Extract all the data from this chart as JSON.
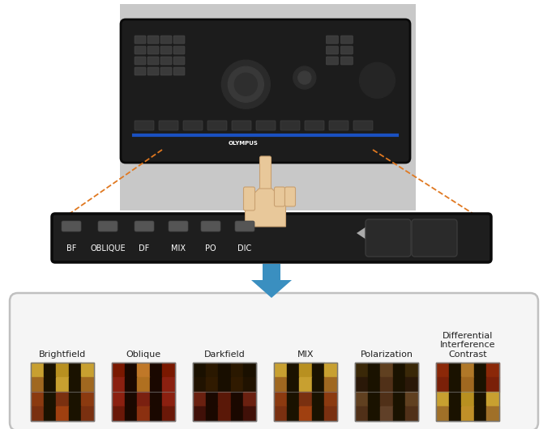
{
  "bg_color": "#ffffff",
  "labels": [
    "Brightfield",
    "Oblique",
    "Darkfield",
    "MIX",
    "Polarization",
    "Differential\nInterference\nContrast"
  ],
  "panel_bg": "#f8f8f8",
  "panel_border": "#cccccc",
  "arrow_color": "#3a8fc0",
  "dashed_color": "#e07820",
  "button_labels": [
    "BF",
    "OBLIQUE",
    "DF",
    "MIX",
    "PO",
    "DIC"
  ],
  "thumb_colors": [
    {
      "top": [
        [
          "#c8a030",
          "#1a1200",
          "#b89020",
          "#1a1200",
          "#c8a030"
        ],
        [
          "#a06820",
          "#1a1200",
          "#c8a030",
          "#1a1200",
          "#a06820"
        ]
      ],
      "bot": [
        [
          "#8b3a10",
          "#1a1200",
          "#7a3010",
          "#1a1200",
          "#8b3a10"
        ],
        [
          "#7a3010",
          "#1a1200",
          "#a04010",
          "#1a1200",
          "#7a3010"
        ]
      ]
    },
    {
      "top": [
        [
          "#7a1800",
          "#1a0800",
          "#c07828",
          "#1a0800",
          "#7a1800"
        ],
        [
          "#8b2010",
          "#1a0800",
          "#b07020",
          "#1a0800",
          "#8b2010"
        ]
      ],
      "bot": [
        [
          "#8b2010",
          "#1a0800",
          "#7a2010",
          "#1a0800",
          "#8b2010"
        ],
        [
          "#6a1808",
          "#1a0800",
          "#8b3010",
          "#1a0800",
          "#6a1808"
        ]
      ]
    },
    {
      "top": [
        [
          "#1a1000",
          "#2a1800",
          "#180e00",
          "#2a1800",
          "#1a1000"
        ],
        [
          "#201200",
          "#301a00",
          "#180e00",
          "#301a00",
          "#201200"
        ]
      ],
      "bot": [
        [
          "#6a2010",
          "#1a0800",
          "#5a1808",
          "#1a0800",
          "#6a2010"
        ],
        [
          "#401008",
          "#1a0800",
          "#5a1808",
          "#1a0800",
          "#401008"
        ]
      ]
    },
    {
      "top": [
        [
          "#c8a030",
          "#1a1200",
          "#b89020",
          "#1a1200",
          "#c8a030"
        ],
        [
          "#a06820",
          "#1a1200",
          "#c8a030",
          "#1a1200",
          "#a06820"
        ]
      ],
      "bot": [
        [
          "#8b3a10",
          "#1a1200",
          "#7a3010",
          "#1a1200",
          "#8b3a10"
        ],
        [
          "#7a3010",
          "#1a1200",
          "#a04010",
          "#1a1200",
          "#7a3010"
        ]
      ]
    },
    {
      "top": [
        [
          "#3a2808",
          "#1a1200",
          "#604020",
          "#1a1200",
          "#3a2808"
        ],
        [
          "#2a1808",
          "#1a1200",
          "#503018",
          "#1a1200",
          "#2a1808"
        ]
      ],
      "bot": [
        [
          "#604020",
          "#1a1200",
          "#503018",
          "#1a1200",
          "#604020"
        ],
        [
          "#503018",
          "#1a1200",
          "#604028",
          "#1a1200",
          "#503018"
        ]
      ]
    },
    {
      "top": [
        [
          "#8b2808",
          "#1a1200",
          "#b07828",
          "#1a1200",
          "#8b2808"
        ],
        [
          "#7a2008",
          "#1a1200",
          "#a06820",
          "#1a1200",
          "#7a2008"
        ]
      ],
      "bot": [
        [
          "#c8a030",
          "#1a1200",
          "#b89020",
          "#1a1200",
          "#c8a030"
        ],
        [
          "#a07028",
          "#1a1200",
          "#c09028",
          "#1a1200",
          "#a07028"
        ]
      ]
    }
  ]
}
